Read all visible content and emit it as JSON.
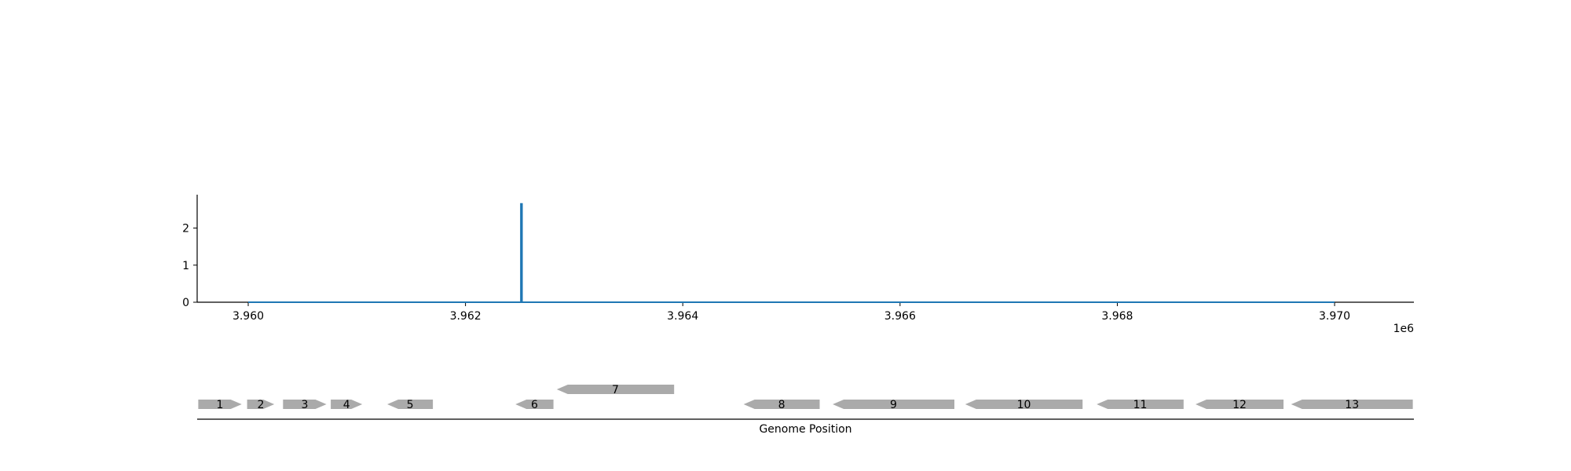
{
  "chart_data": [
    {
      "type": "line",
      "title": "",
      "xlabel": "",
      "ylabel": "",
      "x_offset_label": "1e6",
      "xlim": [
        3.95953,
        3.97073
      ],
      "ylim": [
        0,
        2.9
      ],
      "x_ticks": [
        3.96,
        3.962,
        3.964,
        3.966,
        3.968,
        3.97
      ],
      "x_tick_labels": [
        "3.960",
        "3.962",
        "3.964",
        "3.966",
        "3.968",
        "3.970"
      ],
      "y_ticks": [
        0,
        1,
        2
      ],
      "y_tick_labels": [
        "0",
        "1",
        "2"
      ],
      "grid": false,
      "color": "#1f77b4",
      "series": [
        {
          "x": [
            3.96,
            3.96251,
            3.96251,
            3.96252,
            3.96252,
            3.97
          ],
          "y": [
            0,
            0,
            2.65,
            2.65,
            0,
            0
          ]
        }
      ]
    },
    {
      "type": "gene_track",
      "xlabel": "Genome Position",
      "color": "#aaaaaa",
      "genes": [
        {
          "label": "1",
          "start": 3.95954,
          "end": 3.95994,
          "strand": "+",
          "row": 0
        },
        {
          "label": "2",
          "start": 3.95999,
          "end": 3.96024,
          "strand": "+",
          "row": 0
        },
        {
          "label": "3",
          "start": 3.96032,
          "end": 3.96072,
          "strand": "+",
          "row": 0
        },
        {
          "label": "4",
          "start": 3.96076,
          "end": 3.96105,
          "strand": "+",
          "row": 0
        },
        {
          "label": "5",
          "start": 3.96128,
          "end": 3.9617,
          "strand": "-",
          "row": 0
        },
        {
          "label": "6",
          "start": 3.96246,
          "end": 3.96281,
          "strand": "-",
          "row": 0
        },
        {
          "label": "7",
          "start": 3.96284,
          "end": 3.96392,
          "strand": "-",
          "row": 1
        },
        {
          "label": "8",
          "start": 3.96456,
          "end": 3.96526,
          "strand": "-",
          "row": 0
        },
        {
          "label": "9",
          "start": 3.96538,
          "end": 3.9665,
          "strand": "-",
          "row": 0
        },
        {
          "label": "10",
          "start": 3.9666,
          "end": 3.96768,
          "strand": "-",
          "row": 0
        },
        {
          "label": "11",
          "start": 3.96781,
          "end": 3.96861,
          "strand": "-",
          "row": 0
        },
        {
          "label": "12",
          "start": 3.96872,
          "end": 3.96953,
          "strand": "-",
          "row": 0
        },
        {
          "label": "13",
          "start": 3.9696,
          "end": 3.97072,
          "strand": "-",
          "row": 0
        }
      ]
    }
  ]
}
